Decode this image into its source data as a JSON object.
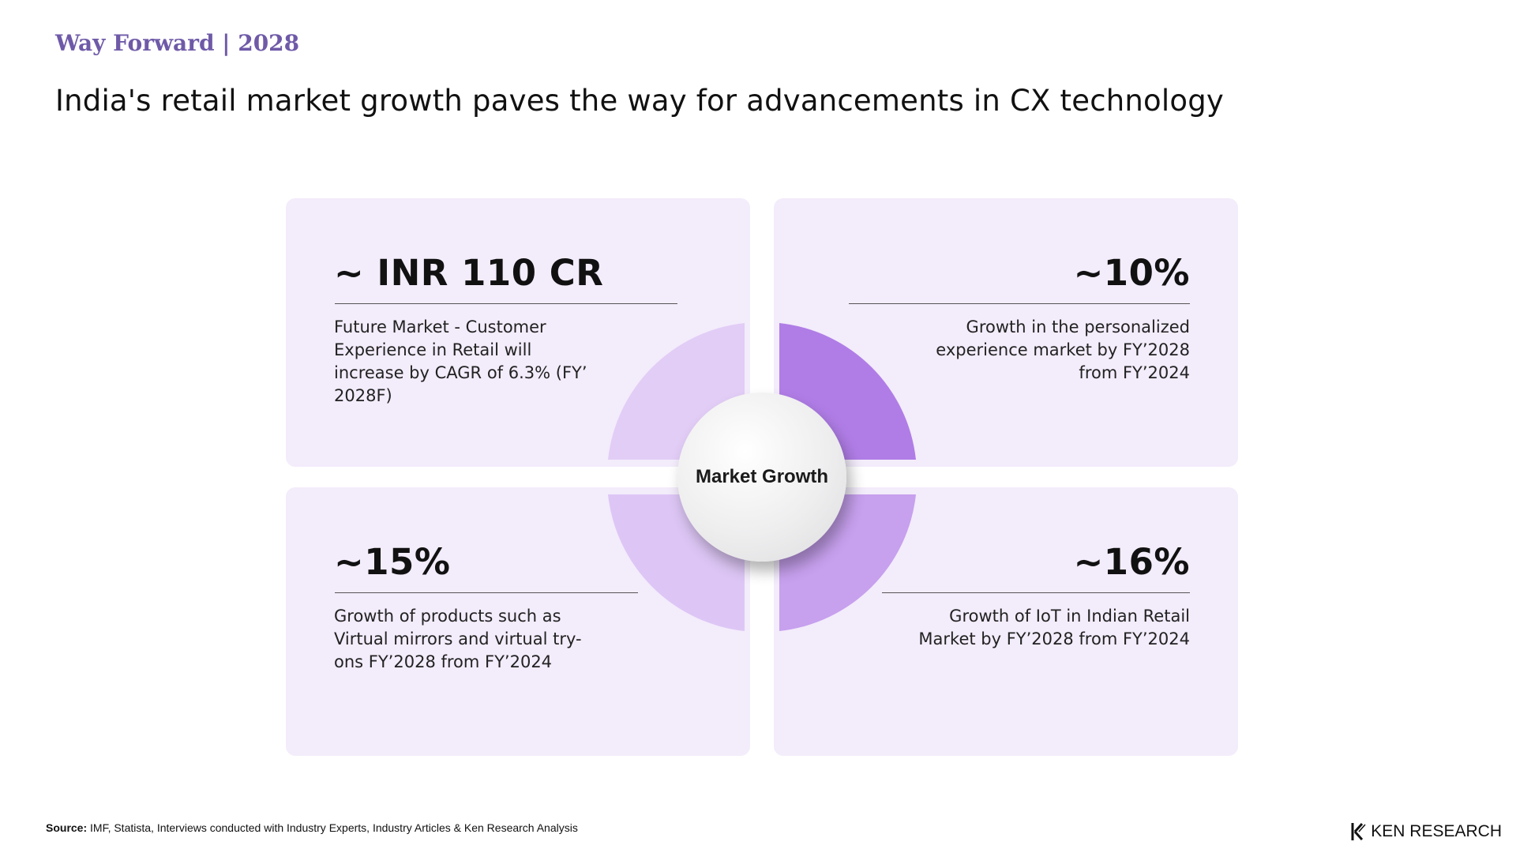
{
  "header": {
    "kicker": "Way Forward | 2028",
    "headline": "India's retail market growth paves the way for advancements in CX technology"
  },
  "hub": {
    "label": "Market Growth",
    "colors": {
      "top_left": "#e2cdf6",
      "top_right": "#b07de6",
      "bottom_left": "#ddc6f5",
      "bottom_right": "#c7a0ee"
    }
  },
  "cards": [
    {
      "metric": "~ INR 110 CR",
      "description": "Future Market - Customer Experience in Retail will increase by CAGR of 6.3% (FY’ 2028F)"
    },
    {
      "metric": "~10%",
      "description": "Growth in the personalized experience market by FY’2028 from FY’2024"
    },
    {
      "metric": "~15%",
      "description": "Growth of products such as Virtual mirrors and virtual try-ons FY’2028 from FY’2024"
    },
    {
      "metric": "~16%",
      "description": "Growth of IoT in Indian Retail Market by FY’2028 from FY’2024"
    }
  ],
  "footer": {
    "source_label": "Source:",
    "source_text": " IMF, Statista, Interviews conducted with Industry Experts, Industry Articles & Ken Research Analysis",
    "logo_text": "KEN RESEARCH"
  },
  "colors": {
    "accent": "#6f5aa8",
    "card_background": "#f3ecfb"
  }
}
